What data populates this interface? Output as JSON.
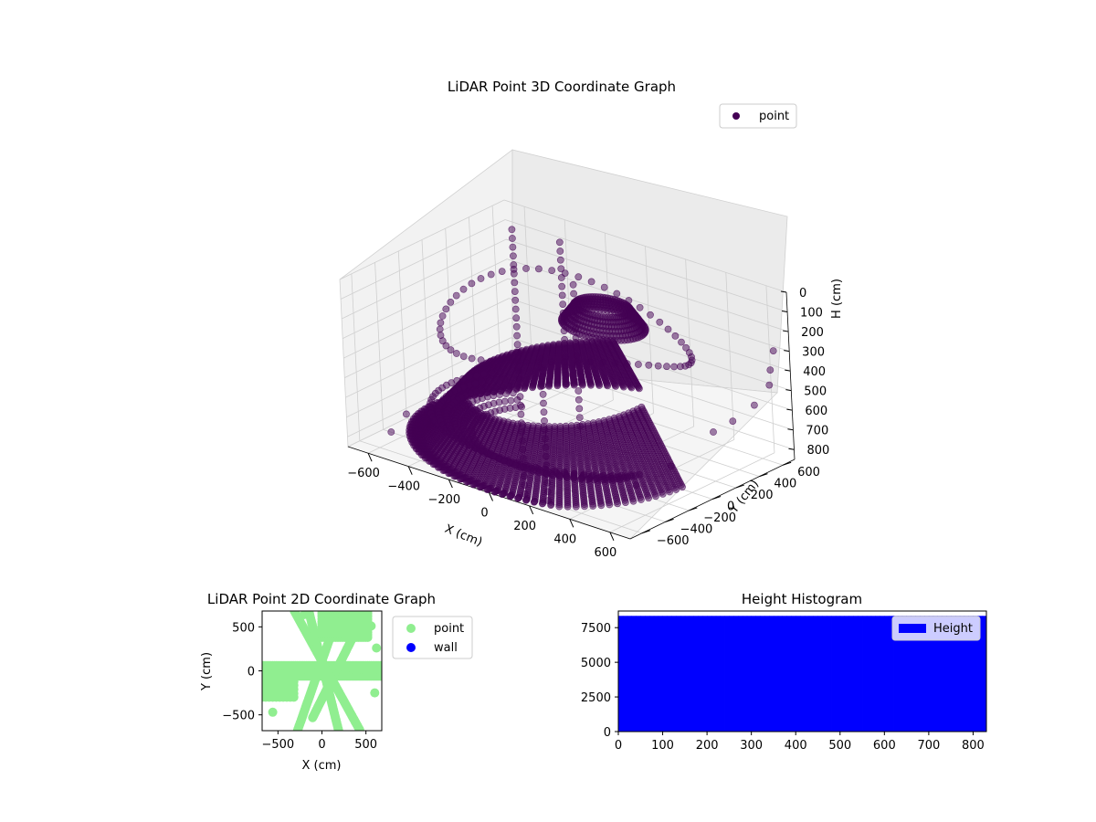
{
  "chart_data": [
    {
      "id": "lidar-3d",
      "type": "scatter3d",
      "title": "LiDAR Point 3D Coordinate Graph",
      "xlabel": "X (cm)",
      "ylabel": "Y (cm)",
      "zlabel": "H (cm)",
      "xlim": [
        -700,
        700
      ],
      "ylim": [
        -700,
        700
      ],
      "zlim": [
        0,
        850
      ],
      "z_inverted": true,
      "xticks": [
        "−600",
        "−400",
        "−200",
        "0",
        "200",
        "400",
        "600"
      ],
      "yticks": [
        "−600",
        "−400",
        "−200",
        "0",
        "200",
        "400",
        "600"
      ],
      "zticks": [
        "0",
        "100",
        "200",
        "300",
        "400",
        "500",
        "600",
        "700",
        "800"
      ],
      "grid": true,
      "legend": {
        "placement": "top-right",
        "entries": [
          {
            "label": "point",
            "color": "#440154"
          }
        ]
      },
      "color": "#440154",
      "alpha": 0.5,
      "description_series": "dense ring of points around origin at H≈150–450 cm, ~50 concentric arcs descending toward +X at H≈450–800 cm, sparse vertical columns"
    },
    {
      "id": "lidar-2d",
      "type": "scatter",
      "title": "LiDAR Point 2D Coordinate Graph",
      "xlabel": "X (cm)",
      "ylabel": "Y (cm)",
      "xlim": [
        -680,
        680
      ],
      "ylim": [
        -680,
        680
      ],
      "xticks": [
        "−500",
        "0",
        "500"
      ],
      "yticks": [
        "−500",
        "0",
        "500"
      ],
      "legend": {
        "placement": "outside-right",
        "entries": [
          {
            "label": "point",
            "color": "#90ee90"
          },
          {
            "label": "wall",
            "color": "#0000ff"
          }
        ]
      }
    },
    {
      "id": "height-hist",
      "type": "bar",
      "title": "Height Histogram",
      "xlim": [
        0,
        830
      ],
      "ylim": [
        0,
        8700
      ],
      "xticks": [
        "0",
        "100",
        "200",
        "300",
        "400",
        "500",
        "600",
        "700",
        "800"
      ],
      "yticks": [
        "0",
        "2500",
        "5000",
        "7500"
      ],
      "bins": {
        "start": 0,
        "end": 830,
        "count": 83
      },
      "bin_value": 8350,
      "color": "#0000ff",
      "legend": {
        "placement": "top-right",
        "entries": [
          {
            "label": "Height",
            "color": "#0000ff"
          }
        ]
      }
    }
  ]
}
